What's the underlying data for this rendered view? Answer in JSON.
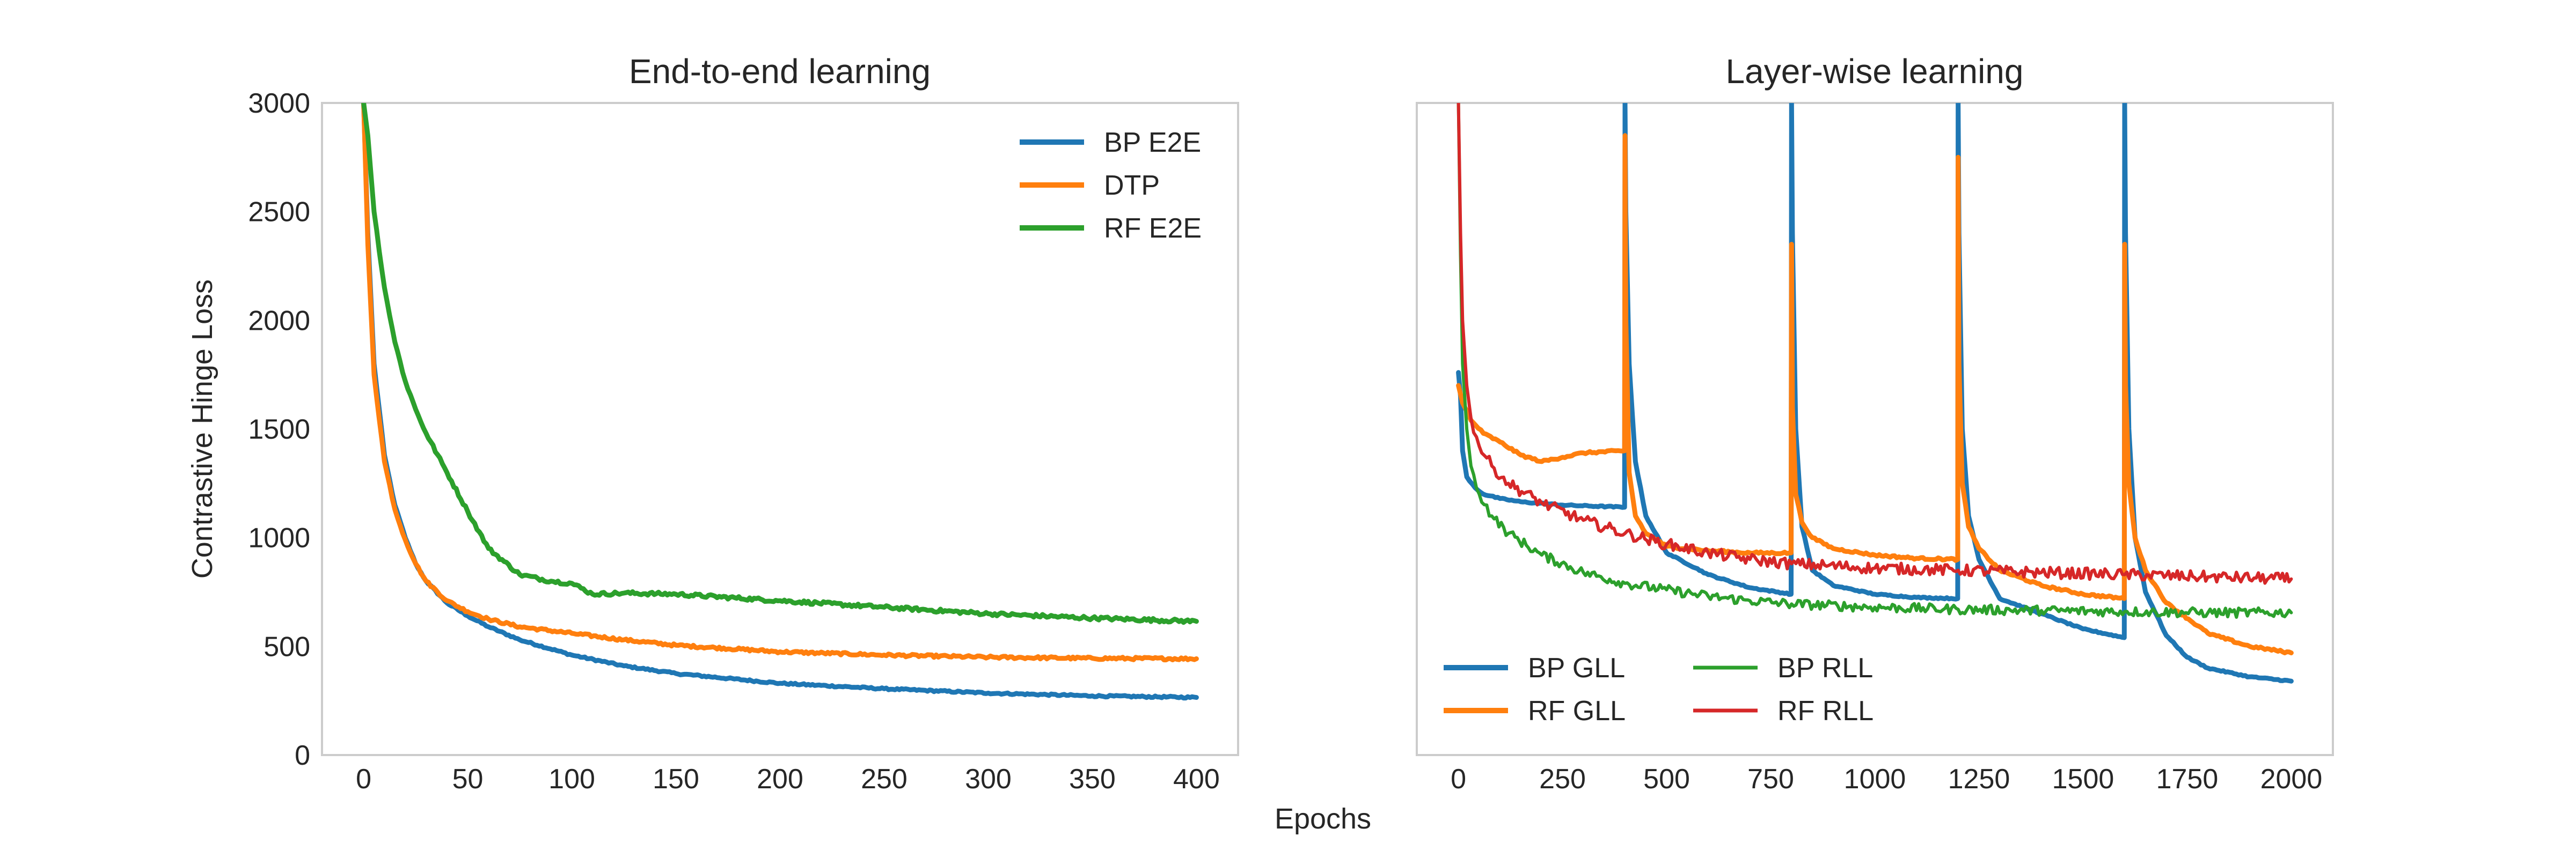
{
  "figure": {
    "xlabel_shared": "Epochs"
  },
  "chart_data": [
    {
      "type": "line",
      "title": "End-to-end learning",
      "xlabel": "",
      "ylabel": "Contrastive Hinge Loss",
      "xlim": [
        -20,
        420
      ],
      "ylim": [
        0,
        3000
      ],
      "xticks": [
        0,
        50,
        100,
        150,
        200,
        250,
        300,
        350,
        400
      ],
      "yticks": [
        0,
        500,
        1000,
        1500,
        2000,
        2500,
        3000
      ],
      "grid": false,
      "legend_position": "top-right",
      "legend_columns": 1,
      "series": [
        {
          "name": "BP E2E",
          "color": "#1f77b4",
          "width": 9,
          "noise": 4,
          "x": [
            0,
            2,
            5,
            10,
            15,
            20,
            25,
            30,
            40,
            50,
            60,
            75,
            100,
            125,
            150,
            200,
            250,
            300,
            350,
            400
          ],
          "y": [
            3000,
            2400,
            1800,
            1380,
            1150,
            1000,
            880,
            800,
            700,
            640,
            590,
            530,
            460,
            410,
            375,
            330,
            305,
            285,
            272,
            265
          ]
        },
        {
          "name": "DTP",
          "color": "#ff7f0e",
          "width": 9,
          "noise": 6,
          "x": [
            0,
            2,
            5,
            10,
            15,
            20,
            25,
            30,
            40,
            50,
            60,
            75,
            100,
            125,
            150,
            200,
            250,
            300,
            350,
            400
          ],
          "y": [
            3000,
            2350,
            1750,
            1350,
            1130,
            990,
            880,
            800,
            710,
            660,
            625,
            590,
            560,
            530,
            505,
            475,
            460,
            450,
            445,
            443
          ]
        },
        {
          "name": "RF E2E",
          "color": "#2ca02c",
          "width": 9,
          "noise": 8,
          "x": [
            0,
            2,
            5,
            10,
            15,
            20,
            25,
            30,
            40,
            50,
            60,
            75,
            90,
            100,
            110,
            125,
            150,
            200,
            250,
            300,
            350,
            400
          ],
          "y": [
            3000,
            2850,
            2500,
            2150,
            1900,
            1720,
            1590,
            1480,
            1300,
            1120,
            950,
            830,
            800,
            790,
            740,
            745,
            740,
            710,
            680,
            650,
            630,
            615
          ]
        }
      ]
    },
    {
      "type": "line",
      "title": "Layer-wise learning",
      "xlabel": "",
      "ylabel": "",
      "xlim": [
        -100,
        2100
      ],
      "ylim": [
        0,
        3000
      ],
      "xticks": [
        0,
        250,
        500,
        750,
        1000,
        1250,
        1500,
        1750,
        2000
      ],
      "yticks": [],
      "grid": false,
      "legend_position": "lower-left",
      "legend_columns": 2,
      "series": [
        {
          "name": "BP GLL",
          "color": "#1f77b4",
          "width": 9,
          "noise": 3,
          "x": [
            0,
            5,
            10,
            20,
            40,
            60,
            100,
            150,
            250,
            399,
            400,
            402,
            410,
            425,
            450,
            500,
            600,
            700,
            799,
            800,
            802,
            810,
            825,
            850,
            900,
            1000,
            1100,
            1199,
            1200,
            1202,
            1210,
            1225,
            1250,
            1300,
            1400,
            1500,
            1599,
            1600,
            1602,
            1610,
            1625,
            1650,
            1700,
            1750,
            1800,
            1900,
            2000
          ],
          "y": [
            1760,
            1650,
            1400,
            1280,
            1230,
            1200,
            1180,
            1165,
            1150,
            1140,
            3000,
            2500,
            1800,
            1350,
            1100,
            930,
            830,
            770,
            740,
            3000,
            2400,
            1500,
            1050,
            850,
            780,
            740,
            725,
            720,
            3000,
            2400,
            1500,
            1100,
            900,
            720,
            650,
            580,
            540,
            3000,
            2400,
            1500,
            1000,
            750,
            550,
            450,
            400,
            360,
            340
          ]
        },
        {
          "name": "RF GLL",
          "color": "#ff7f0e",
          "width": 9,
          "noise": 5,
          "x": [
            0,
            10,
            30,
            60,
            100,
            150,
            200,
            250,
            300,
            399,
            400,
            402,
            410,
            425,
            450,
            500,
            600,
            700,
            799,
            800,
            802,
            810,
            825,
            850,
            900,
            1000,
            1100,
            1199,
            1200,
            1202,
            1210,
            1225,
            1250,
            1300,
            1400,
            1500,
            1599,
            1600,
            1602,
            1610,
            1625,
            1650,
            1700,
            1800,
            1900,
            2000
          ],
          "y": [
            1700,
            1620,
            1540,
            1480,
            1440,
            1380,
            1350,
            1370,
            1390,
            1400,
            2850,
            2000,
            1300,
            1100,
            1020,
            960,
            940,
            930,
            930,
            2350,
            1600,
            1200,
            1070,
            1000,
            950,
            920,
            905,
            900,
            2750,
            1800,
            1250,
            1050,
            950,
            850,
            780,
            740,
            720,
            2350,
            1700,
            1250,
            1000,
            850,
            700,
            560,
            500,
            470
          ]
        },
        {
          "name": "BP RLL",
          "color": "#2ca02c",
          "width": 6,
          "noise": 22,
          "x": [
            0,
            5,
            10,
            20,
            30,
            50,
            80,
            120,
            200,
            300,
            400,
            500,
            600,
            700,
            800,
            1000,
            1200,
            1400,
            1600,
            1800,
            2000
          ],
          "y": [
            3000,
            2300,
            1800,
            1500,
            1330,
            1200,
            1100,
            1020,
            920,
            840,
            790,
            760,
            730,
            710,
            695,
            680,
            670,
            665,
            660,
            655,
            655
          ]
        },
        {
          "name": "RF RLL",
          "color": "#d62728",
          "width": 6,
          "noise": 26,
          "x": [
            0,
            5,
            10,
            20,
            30,
            50,
            80,
            120,
            200,
            300,
            400,
            500,
            600,
            700,
            800,
            1000,
            1200,
            1400,
            1600,
            1800,
            2000
          ],
          "y": [
            3000,
            2400,
            2000,
            1700,
            1550,
            1420,
            1330,
            1250,
            1160,
            1080,
            1020,
            970,
            930,
            900,
            880,
            860,
            850,
            840,
            830,
            820,
            810
          ]
        }
      ]
    }
  ]
}
